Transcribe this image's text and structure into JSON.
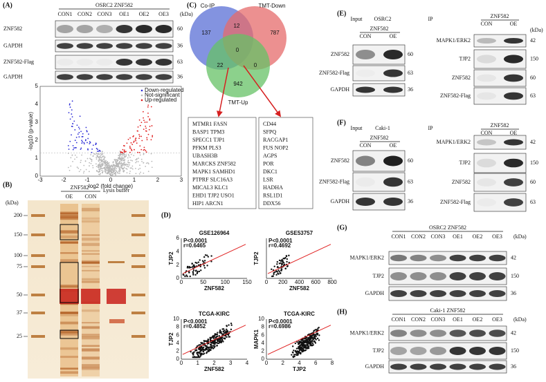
{
  "panel_a": {
    "label": "(A)",
    "header": "OSRC2 ZNF582",
    "unit": "(kDa)",
    "lanes": [
      "CON1",
      "CON2",
      "CON3",
      "OE1",
      "OE2",
      "OE3"
    ],
    "rows": [
      {
        "name": "ZNF582",
        "kda": 60
      },
      {
        "name": "GAPDH",
        "kda": 36
      },
      {
        "name": "ZNF582-Flag",
        "kda": 63
      },
      {
        "name": "GAPDH",
        "kda": 36
      }
    ],
    "volcano": {
      "ylabel": "-log10 (p-value)",
      "xlabel": "log2 (fold change)",
      "legend": [
        "Down-regulated",
        "Not-significant",
        "Up-regulated"
      ],
      "yticks": [
        0,
        1,
        2,
        3,
        4,
        5
      ],
      "xticks": [
        -3,
        -2,
        -1,
        0,
        1,
        2,
        3
      ]
    }
  },
  "panel_b": {
    "label": "(B)",
    "unit": "(kDa)",
    "markers": [
      200,
      150,
      100,
      75,
      50,
      37,
      25
    ],
    "group": "ZNF582",
    "lanes": [
      "OE",
      "CON"
    ],
    "lysis": "Lysis buffer"
  },
  "panel_c": {
    "label": "(C)",
    "sets": [
      "Co-IP",
      "TMT-Down",
      "TMT-Up"
    ],
    "counts": [
      137,
      12,
      787,
      0,
      22,
      0,
      942
    ],
    "list_left": [
      "MTMR1 FASN",
      "BASP1 TPM3",
      "SPECC1 TJP1",
      "PFKM PLS3",
      "UBASH3B",
      "MARCKS ZNF582",
      "MAPK1 SAMHD1",
      "PTPRF SLC16A3",
      "MICAL3 KLC1",
      "EHD1 TJP2 USO1",
      "HIP1 ARCN1"
    ],
    "list_right": [
      "CD44",
      "SFPQ",
      "RACGAP1",
      "FUS NOP2",
      "AGPS",
      "POR",
      "DKC1",
      "LSR",
      "HADHA",
      "RSL1D1",
      "DDX56"
    ]
  },
  "panel_d": {
    "label": "(D)",
    "plots": [
      {
        "title": "GSE126964",
        "stats": [
          "P<0.0001",
          "r=0.6465"
        ],
        "xlabel": "ZNF582",
        "ylabel": "TJP2",
        "xticks": [
          0,
          50,
          100,
          150
        ],
        "yticks": [
          0,
          2,
          4,
          6
        ]
      },
      {
        "title": "GSE53757",
        "stats": [
          "P<0.0001",
          "r=0.4692"
        ],
        "xlabel": "ZNF582",
        "ylabel": "TJP2",
        "xticks": [
          0,
          200,
          400,
          600,
          800
        ],
        "yticks": []
      },
      {
        "title": "TCGA-KIRC",
        "stats": [
          "P<0.0001",
          "r=0.4852"
        ],
        "xlabel": "ZNF582",
        "ylabel": "TJP2",
        "xticks": [
          0,
          1,
          2,
          3,
          4
        ],
        "yticks": [
          0,
          2,
          4,
          6,
          8,
          10
        ]
      },
      {
        "title": "TCGA-KIRC",
        "stats": [
          "P<0.0001",
          "r=0.6986"
        ],
        "xlabel": "TJP2",
        "ylabel": "MAPK1",
        "xticks": [
          0,
          2,
          4,
          6,
          8
        ],
        "yticks": [
          0,
          2,
          4,
          6,
          8,
          10
        ]
      }
    ]
  },
  "panel_e": {
    "label": "(E)",
    "input": "Input",
    "cell": "OSRC2",
    "group": "ZNF582",
    "lanes": [
      "CON",
      "OE"
    ],
    "ip": "IP",
    "unit": "(kDa)",
    "input_rows": [
      {
        "name": "ZNF582",
        "kda": 60
      },
      {
        "name": "ZNF582-Flag",
        "kda": 63
      },
      {
        "name": "GAPDH",
        "kda": 36
      }
    ],
    "ip_rows": [
      {
        "name": "MAPK1/ERK2",
        "kda": 42
      },
      {
        "name": "TJP2",
        "kda": 150
      },
      {
        "name": "ZNF582",
        "kda": 60
      },
      {
        "name": "ZNF582-Flag",
        "kda": 63
      }
    ]
  },
  "panel_f": {
    "label": "(F)",
    "input": "Input",
    "cell": "Caki-1",
    "group": "ZNF582",
    "lanes": [
      "CON",
      "OE"
    ],
    "ip": "IP",
    "input_rows": [
      {
        "name": "ZNF582",
        "kda": 60
      },
      {
        "name": "ZNF582-Flag",
        "kda": 63
      },
      {
        "name": "GAPDH",
        "kda": 36
      }
    ],
    "ip_rows": [
      {
        "name": "MAPK1/ERK2",
        "kda": 42
      },
      {
        "name": "TJP2",
        "kda": 150
      },
      {
        "name": "ZNF582",
        "kda": 60
      },
      {
        "name": "ZNF582-Flag",
        "kda": 63
      }
    ]
  },
  "panel_g": {
    "label": "(G)",
    "header": "OSRC2 ZNF582",
    "unit": "(kDa)",
    "lanes": [
      "CON1",
      "CON2",
      "CON3",
      "OE1",
      "OE2",
      "OE3"
    ],
    "rows": [
      {
        "name": "MAPK1/ERK2",
        "kda": 42
      },
      {
        "name": "TJP2",
        "kda": 150
      },
      {
        "name": "GAPDH",
        "kda": 36
      }
    ]
  },
  "panel_h": {
    "label": "(H)",
    "header": "Caki-1 ZNF582",
    "unit": "(kDa)",
    "lanes": [
      "CON1",
      "CON2",
      "CON3",
      "OE1",
      "OE2",
      "OE3"
    ],
    "rows": [
      {
        "name": "MAPK1/ERK2",
        "kda": 42
      },
      {
        "name": "TJP2",
        "kda": 150
      },
      {
        "name": "GAPDH",
        "kda": 36
      }
    ]
  }
}
